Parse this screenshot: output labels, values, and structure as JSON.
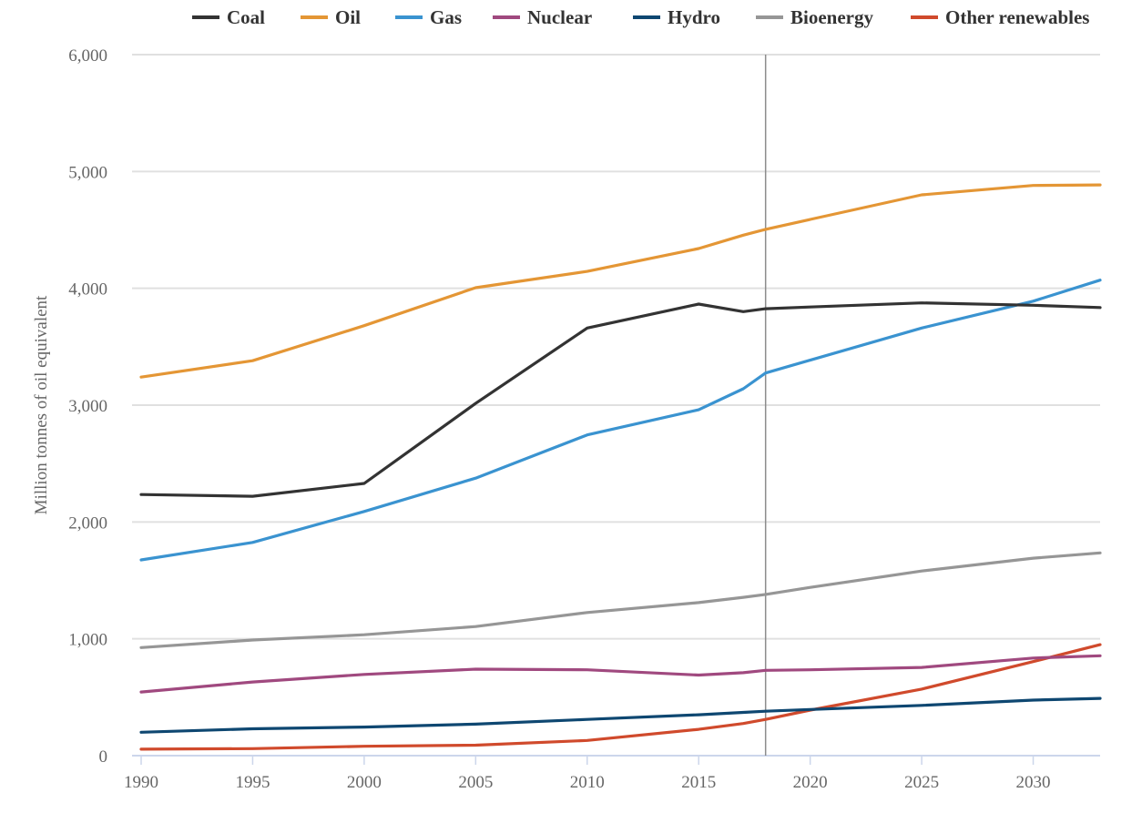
{
  "chart_data": {
    "type": "line",
    "title": "",
    "xlabel": "",
    "ylabel": "Million tonnes of oil equivalent",
    "xlim": [
      1990,
      2033
    ],
    "ylim": [
      0,
      6000
    ],
    "x_ticks": [
      1990,
      1995,
      2000,
      2005,
      2010,
      2015,
      2020,
      2025,
      2030
    ],
    "x_tick_labels": [
      "1990",
      "1995",
      "2000",
      "2005",
      "2010",
      "2015",
      "2020",
      "2025",
      "2030"
    ],
    "y_ticks": [
      0,
      1000,
      2000,
      3000,
      4000,
      5000,
      6000
    ],
    "y_tick_labels": [
      "0",
      "1,000",
      "2,000",
      "3,000",
      "4,000",
      "5,000",
      "6,000"
    ],
    "grid": "horizontal",
    "legend_position": "top",
    "annotations": [
      {
        "type": "vertical-line",
        "x": 2018
      }
    ],
    "x": [
      1990,
      1995,
      2000,
      2005,
      2010,
      2015,
      2017,
      2018,
      2020,
      2025,
      2030,
      2033
    ],
    "series": [
      {
        "name": "Coal",
        "color": "#333333",
        "values": [
          2235,
          2220,
          2330,
          3015,
          3660,
          3865,
          3800,
          3825,
          3840,
          3875,
          3855,
          3835
        ]
      },
      {
        "name": "Oil",
        "color": "#e49635",
        "values": [
          3240,
          3380,
          3680,
          4005,
          4145,
          4340,
          4455,
          4505,
          4590,
          4800,
          4880,
          4885
        ]
      },
      {
        "name": "Gas",
        "color": "#3a93d0",
        "values": [
          1675,
          1825,
          2090,
          2375,
          2745,
          2960,
          3140,
          3275,
          3385,
          3660,
          3890,
          4070
        ]
      },
      {
        "name": "Nuclear",
        "color": "#a0497f",
        "values": [
          545,
          630,
          695,
          740,
          735,
          690,
          710,
          730,
          735,
          755,
          835,
          855
        ]
      },
      {
        "name": "Hydro",
        "color": "#0e4771",
        "values": [
          200,
          230,
          245,
          270,
          310,
          350,
          370,
          380,
          395,
          430,
          475,
          490
        ]
      },
      {
        "name": "Bioenergy",
        "color": "#969696",
        "values": [
          925,
          990,
          1035,
          1105,
          1225,
          1310,
          1355,
          1380,
          1440,
          1580,
          1690,
          1735
        ]
      },
      {
        "name": "Other renewables",
        "color": "#d04a2c",
        "values": [
          55,
          60,
          80,
          90,
          130,
          225,
          275,
          310,
          390,
          570,
          805,
          950
        ]
      }
    ]
  }
}
